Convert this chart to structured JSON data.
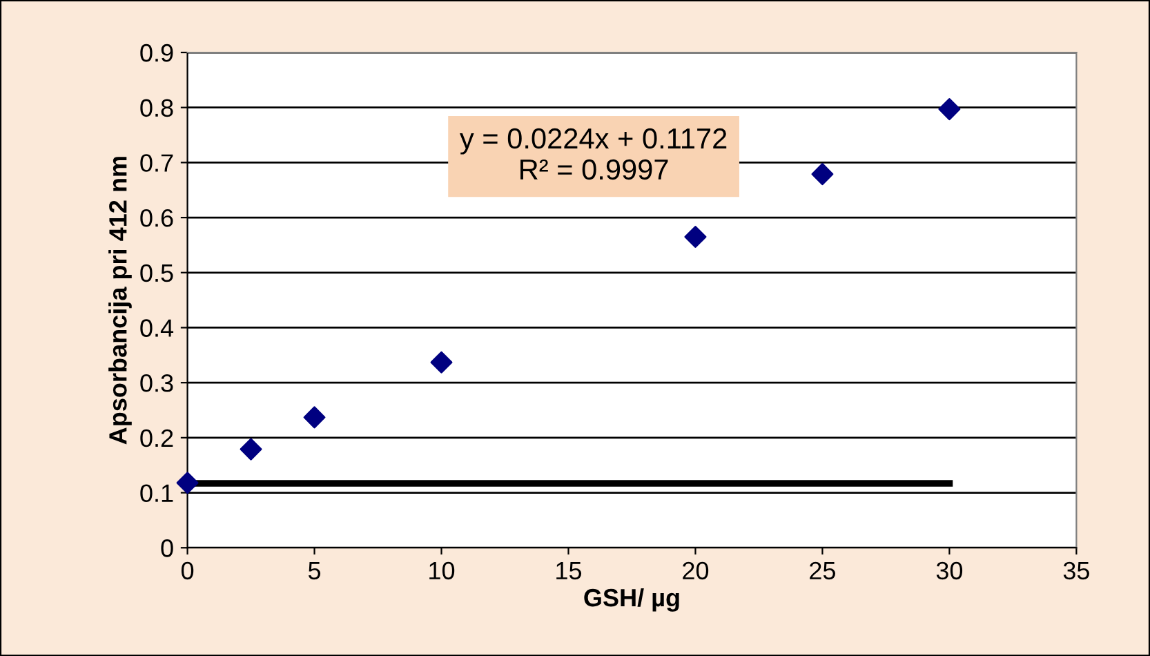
{
  "chart_data": {
    "type": "scatter",
    "xlabel": "GSH/ µg",
    "ylabel": "Apsorbancija pri 412 nm",
    "x": [
      0,
      2.5,
      5,
      10,
      20,
      25,
      30
    ],
    "series": [
      {
        "color": "#000080",
        "marker": "diamond",
        "values": [
          0.118,
          0.179,
          0.237,
          0.337,
          0.565,
          0.679,
          0.797
        ]
      },
      {
        "type": "line",
        "color": "#000000",
        "marker": "none",
        "line_style": "solid",
        "x": [
          0,
          30
        ],
        "values": [
          0.117,
          0.117
        ]
      }
    ],
    "annotations": [
      "y = 0.0224x + 0.1172\nR² = 0.9997"
    ],
    "xlim": [
      0,
      35
    ],
    "xticks": [
      0,
      5,
      10,
      15,
      20,
      25,
      30,
      35
    ],
    "ylim": [
      0,
      0.9
    ],
    "yticks": [
      0,
      0.1,
      0.2,
      0.3,
      0.4,
      0.5,
      0.6,
      0.7,
      0.8,
      0.9
    ],
    "grid": "y",
    "legend": false
  }
}
